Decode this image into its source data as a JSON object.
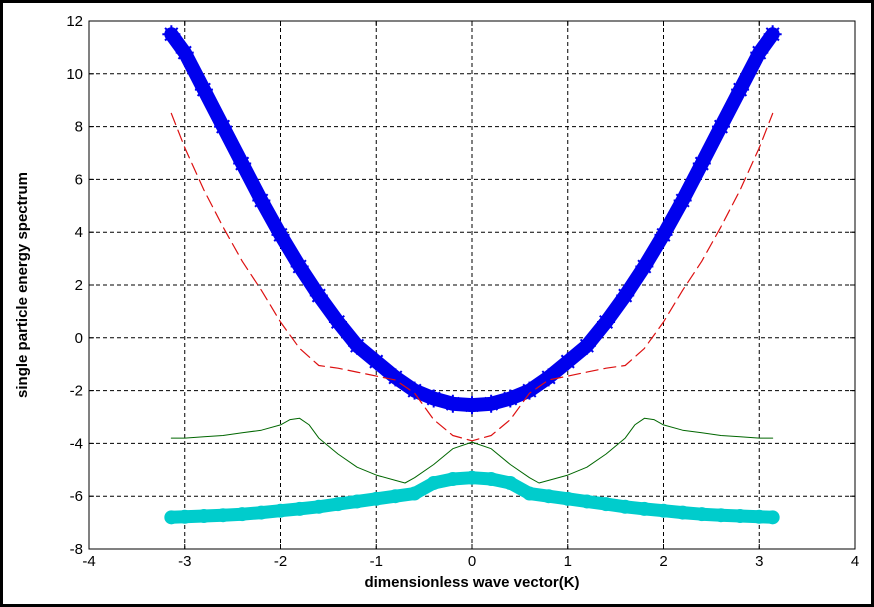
{
  "chart_data": {
    "type": "line",
    "title": "",
    "xlabel": "dimensionless  wave vector(K)",
    "ylabel": "single particle energy spectrum",
    "xlim": [
      -4,
      4
    ],
    "ylim": [
      -8,
      12
    ],
    "xticks": [
      -4,
      -3,
      -2,
      -1,
      0,
      1,
      2,
      3,
      4
    ],
    "yticks": [
      -8,
      -6,
      -4,
      -2,
      0,
      2,
      4,
      6,
      8,
      10,
      12
    ],
    "grid": true,
    "legend": "none",
    "series": [
      {
        "color": "#0000ee",
        "style": "thick-star-marker",
        "x": [
          -3.14,
          -3.0,
          -2.8,
          -2.6,
          -2.4,
          -2.2,
          -2.0,
          -1.8,
          -1.6,
          -1.4,
          -1.2,
          -1.0,
          -0.8,
          -0.6,
          -0.4,
          -0.2,
          0.0,
          0.2,
          0.4,
          0.6,
          0.8,
          1.0,
          1.2,
          1.4,
          1.6,
          1.8,
          2.0,
          2.2,
          2.4,
          2.6,
          2.8,
          3.0,
          3.14
        ],
        "y": [
          11.5,
          10.8,
          9.4,
          8.0,
          6.6,
          5.2,
          3.9,
          2.7,
          1.6,
          0.6,
          -0.3,
          -0.9,
          -1.5,
          -2.0,
          -2.3,
          -2.5,
          -2.55,
          -2.5,
          -2.3,
          -2.0,
          -1.5,
          -0.9,
          -0.3,
          0.6,
          1.6,
          2.7,
          3.9,
          5.2,
          6.6,
          8.0,
          9.4,
          10.8,
          11.5
        ]
      },
      {
        "color": "#dd1111",
        "style": "dashed",
        "x": [
          -3.14,
          -3.0,
          -2.8,
          -2.6,
          -2.4,
          -2.2,
          -2.0,
          -1.8,
          -1.6,
          -1.4,
          -1.2,
          -1.0,
          -0.8,
          -0.6,
          -0.4,
          -0.2,
          0.0,
          0.2,
          0.4,
          0.6,
          0.8,
          1.0,
          1.2,
          1.4,
          1.6,
          1.8,
          2.0,
          2.2,
          2.4,
          2.6,
          2.8,
          3.0,
          3.14
        ],
        "y": [
          8.5,
          7.2,
          5.6,
          4.2,
          2.9,
          1.8,
          0.6,
          -0.4,
          -1.05,
          -1.15,
          -1.3,
          -1.45,
          -1.6,
          -2.1,
          -3.1,
          -3.7,
          -3.9,
          -3.7,
          -3.1,
          -2.1,
          -1.6,
          -1.45,
          -1.3,
          -1.15,
          -1.05,
          -0.4,
          0.6,
          1.8,
          2.9,
          4.2,
          5.6,
          7.2,
          8.5
        ]
      },
      {
        "color": "#006600",
        "style": "solid-thin",
        "x": [
          -3.14,
          -3.0,
          -2.8,
          -2.6,
          -2.4,
          -2.2,
          -2.0,
          -1.9,
          -1.8,
          -1.7,
          -1.6,
          -1.4,
          -1.2,
          -1.0,
          -0.8,
          -0.7,
          -0.6,
          -0.4,
          -0.2,
          0.0,
          0.2,
          0.4,
          0.6,
          0.7,
          0.8,
          1.0,
          1.2,
          1.4,
          1.6,
          1.7,
          1.8,
          1.9,
          2.0,
          2.2,
          2.4,
          2.6,
          2.8,
          3.0,
          3.14
        ],
        "y": [
          -3.8,
          -3.8,
          -3.75,
          -3.7,
          -3.6,
          -3.5,
          -3.3,
          -3.1,
          -3.05,
          -3.3,
          -3.8,
          -4.4,
          -4.9,
          -5.2,
          -5.4,
          -5.5,
          -5.3,
          -4.8,
          -4.2,
          -3.95,
          -4.2,
          -4.8,
          -5.3,
          -5.5,
          -5.4,
          -5.2,
          -4.9,
          -4.4,
          -3.8,
          -3.3,
          -3.05,
          -3.1,
          -3.3,
          -3.5,
          -3.6,
          -3.7,
          -3.75,
          -3.8,
          -3.8
        ]
      },
      {
        "color": "#00cccc",
        "style": "thick-dot-marker",
        "x": [
          -3.14,
          -3.0,
          -2.8,
          -2.6,
          -2.4,
          -2.2,
          -2.0,
          -1.8,
          -1.6,
          -1.4,
          -1.2,
          -1.0,
          -0.8,
          -0.6,
          -0.4,
          -0.2,
          0.0,
          0.2,
          0.4,
          0.6,
          0.8,
          1.0,
          1.2,
          1.4,
          1.6,
          1.8,
          2.0,
          2.2,
          2.4,
          2.6,
          2.8,
          3.0,
          3.14
        ],
        "y": [
          -6.8,
          -6.78,
          -6.75,
          -6.72,
          -6.68,
          -6.62,
          -6.55,
          -6.48,
          -6.4,
          -6.3,
          -6.2,
          -6.1,
          -6.0,
          -5.9,
          -5.5,
          -5.35,
          -5.3,
          -5.35,
          -5.5,
          -5.9,
          -6.0,
          -6.1,
          -6.2,
          -6.3,
          -6.4,
          -6.48,
          -6.55,
          -6.62,
          -6.68,
          -6.72,
          -6.75,
          -6.78,
          -6.8
        ]
      }
    ]
  }
}
